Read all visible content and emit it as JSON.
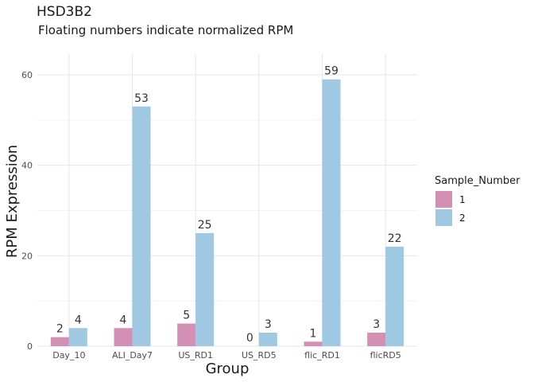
{
  "chart_data": {
    "type": "bar",
    "title": "HSD3B2",
    "subtitle": "Floating numbers indicate normalized RPM",
    "xlabel": "Group",
    "ylabel": "RPM Expression",
    "ylim": [
      0,
      65
    ],
    "yticks": [
      0,
      20,
      40,
      60
    ],
    "grid": true,
    "legend": {
      "title": "Sample_Number",
      "position": "right"
    },
    "categories": [
      "Day_10",
      "ALI_Day7",
      "US_RD1",
      "US_RD5",
      "flic_RD1",
      "flicRD5"
    ],
    "series": [
      {
        "name": "1",
        "color": "#d48fb5",
        "values": [
          2,
          4,
          5,
          0,
          1,
          3
        ]
      },
      {
        "name": "2",
        "color": "#9fc9e3",
        "values": [
          4,
          53,
          25,
          3,
          59,
          22
        ]
      }
    ]
  }
}
